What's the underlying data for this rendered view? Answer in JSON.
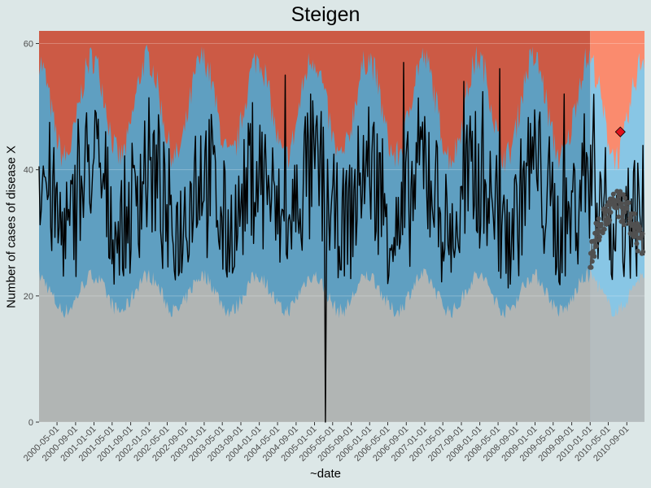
{
  "chart_data": {
    "type": "area",
    "title": "Steigen",
    "xlabel": "~date",
    "ylabel": "Number of cases of disease X",
    "ylim": [
      0,
      62
    ],
    "y_ticks": [
      0,
      20,
      40,
      60
    ],
    "x_range": [
      "2000-01-03",
      "2010-12-27"
    ],
    "x_ticks": [
      "2000-05-01",
      "2000-09-01",
      "2001-01-01",
      "2001-05-01",
      "2001-09-01",
      "2002-01-01",
      "2002-05-01",
      "2002-09-01",
      "2003-01-01",
      "2003-05-01",
      "2003-09-01",
      "2004-01-01",
      "2004-05-01",
      "2004-09-01",
      "2005-01-01",
      "2005-05-01",
      "2005-09-01",
      "2006-01-01",
      "2006-05-01",
      "2006-09-01",
      "2007-01-01",
      "2007-05-01",
      "2007-09-01",
      "2008-01-01",
      "2008-05-01",
      "2008-09-01",
      "2009-01-01",
      "2009-05-01",
      "2009-09-01",
      "2010-01-01",
      "2010-05-01",
      "2010-09-01"
    ],
    "shaded_region": {
      "start": "2010-01-01",
      "end": "2010-12-27",
      "label": ""
    },
    "bands": {
      "description": "seasonal threshold bands: grey (low), blue (normal), red (high); lighter shades within the 2010 region",
      "lower_threshold_min": 16,
      "lower_threshold_max": 24,
      "upper_threshold_min": 36,
      "upper_threshold_max": 60
    },
    "observed_series": {
      "name": "",
      "resolution": "weekly",
      "notable_points": [
        {
          "x": "2000-09-15",
          "y": 48
        },
        {
          "x": "2004-06-20",
          "y": 55
        },
        {
          "x": "2005-03-15",
          "y": 0
        },
        {
          "x": "2006-08-15",
          "y": 57
        },
        {
          "x": "2007-09-20",
          "y": 54
        },
        {
          "x": "2008-05-15",
          "y": 56
        },
        {
          "x": "2009-07-10",
          "y": 52
        }
      ]
    },
    "forecast_points": {
      "name": "",
      "range_y": [
        23,
        37
      ]
    },
    "alert_point": {
      "x": "2010-07-20",
      "y": 46
    },
    "colors": {
      "high": "#cc5a45",
      "high_2010": "#fa8b6e",
      "normal": "#5f9fc1",
      "normal_2010": "#88c6e5",
      "low": "#b1b5b4",
      "low_2010": "#b5bdbf",
      "line": "#000000",
      "forecast": "#505050",
      "alert": "#e0121c",
      "background": "#dce7e7"
    }
  }
}
